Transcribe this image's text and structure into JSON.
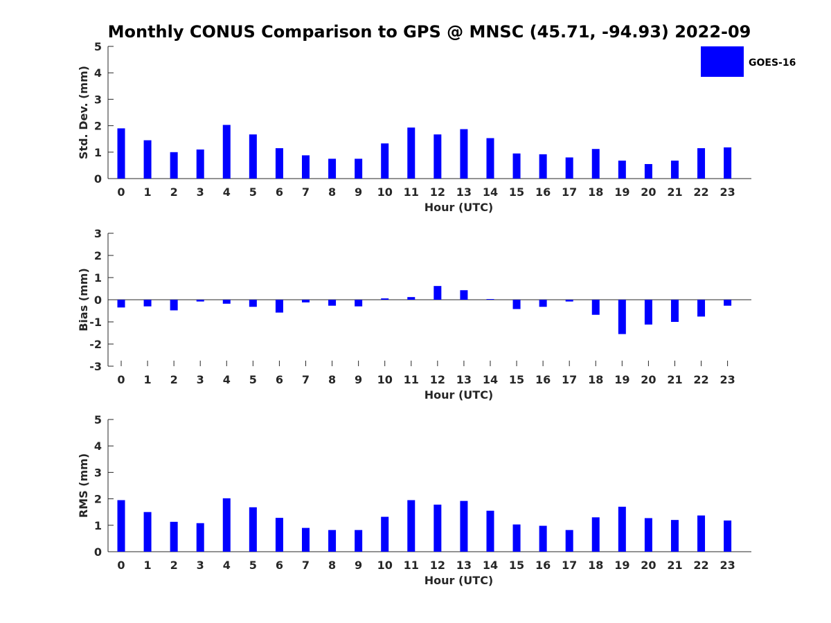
{
  "chart_data": {
    "title": "Monthly CONUS Comparison to GPS @ MNSC (45.71, -94.93) 2022-09",
    "legend": {
      "label": "GOES-16",
      "color": "#0000ff",
      "position": "top-right"
    },
    "panels": [
      {
        "type": "bar",
        "ylabel": "Std. Dev. (mm)",
        "xlabel": "Hour (UTC)",
        "ylim": [
          0,
          5
        ],
        "yticks": [
          0,
          1,
          2,
          3,
          4,
          5
        ],
        "categories": [
          "0",
          "1",
          "2",
          "3",
          "4",
          "5",
          "6",
          "7",
          "8",
          "9",
          "10",
          "11",
          "12",
          "13",
          "14",
          "15",
          "16",
          "17",
          "18",
          "19",
          "20",
          "21",
          "22",
          "23"
        ],
        "series": [
          {
            "name": "GOES-16",
            "values": [
              1.9,
              1.45,
              1.0,
              1.1,
              2.03,
              1.67,
              1.15,
              0.88,
              0.75,
              0.75,
              1.33,
              1.93,
              1.67,
              1.87,
              1.53,
              0.95,
              0.92,
              0.8,
              1.12,
              0.68,
              0.55,
              0.68,
              1.15,
              1.18
            ]
          }
        ]
      },
      {
        "type": "bar",
        "ylabel": "Bias (mm)",
        "xlabel": "Hour (UTC)",
        "ylim": [
          -3,
          3
        ],
        "yticks": [
          -3,
          -2,
          -1,
          0,
          1,
          2,
          3
        ],
        "categories": [
          "0",
          "1",
          "2",
          "3",
          "4",
          "5",
          "6",
          "7",
          "8",
          "9",
          "10",
          "11",
          "12",
          "13",
          "14",
          "15",
          "16",
          "17",
          "18",
          "19",
          "20",
          "21",
          "22",
          "23"
        ],
        "series": [
          {
            "name": "GOES-16",
            "values": [
              -0.35,
              -0.3,
              -0.48,
              -0.08,
              -0.18,
              -0.32,
              -0.58,
              -0.12,
              -0.27,
              -0.3,
              0.06,
              0.12,
              0.62,
              0.43,
              0.03,
              -0.42,
              -0.32,
              -0.08,
              -0.68,
              -1.55,
              -1.12,
              -1.0,
              -0.76,
              -0.27
            ]
          }
        ]
      },
      {
        "type": "bar",
        "ylabel": "RMS (mm)",
        "xlabel": "Hour (UTC)",
        "ylim": [
          0,
          5
        ],
        "yticks": [
          0,
          1,
          2,
          3,
          4,
          5
        ],
        "categories": [
          "0",
          "1",
          "2",
          "3",
          "4",
          "5",
          "6",
          "7",
          "8",
          "9",
          "10",
          "11",
          "12",
          "13",
          "14",
          "15",
          "16",
          "17",
          "18",
          "19",
          "20",
          "21",
          "22",
          "23"
        ],
        "series": [
          {
            "name": "GOES-16",
            "values": [
              1.95,
              1.5,
              1.13,
              1.08,
              2.02,
              1.68,
              1.28,
              0.9,
              0.82,
              0.82,
              1.32,
              1.95,
              1.78,
              1.92,
              1.55,
              1.03,
              0.98,
              0.82,
              1.3,
              1.7,
              1.27,
              1.2,
              1.37,
              1.18
            ]
          }
        ]
      }
    ]
  }
}
